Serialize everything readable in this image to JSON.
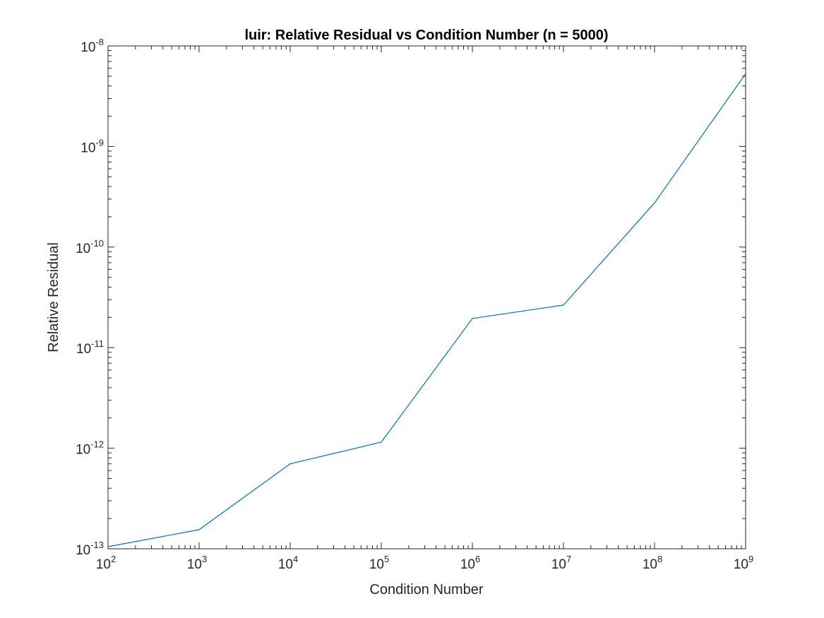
{
  "chart_data": {
    "type": "line",
    "title": "luir: Relative Residual vs Condition Number (n = 5000)",
    "xlabel": "Condition Number",
    "ylabel": "Relative Residual",
    "xscale": "log",
    "yscale": "log",
    "xlim": [
      100,
      1000000000
    ],
    "ylim": [
      1e-13,
      1e-08
    ],
    "grid": false,
    "legend": "none",
    "x_ticks": [
      {
        "base": "10",
        "exp": "2"
      },
      {
        "base": "10",
        "exp": "3"
      },
      {
        "base": "10",
        "exp": "4"
      },
      {
        "base": "10",
        "exp": "5"
      },
      {
        "base": "10",
        "exp": "6"
      },
      {
        "base": "10",
        "exp": "7"
      },
      {
        "base": "10",
        "exp": "8"
      },
      {
        "base": "10",
        "exp": "9"
      }
    ],
    "y_ticks": [
      {
        "base": "10",
        "exp": "-13"
      },
      {
        "base": "10",
        "exp": "-12"
      },
      {
        "base": "10",
        "exp": "-11"
      },
      {
        "base": "10",
        "exp": "-10"
      },
      {
        "base": "10",
        "exp": "-9"
      },
      {
        "base": "10",
        "exp": "-8"
      }
    ],
    "series": [
      {
        "color": "#0072BD",
        "x": [
          100,
          1000,
          10000,
          100000,
          1000000,
          10000000,
          100000000,
          1000000000
        ],
        "y": [
          1.05e-13,
          1.55e-13,
          7e-13,
          1.15e-12,
          1.95e-11,
          2.65e-11,
          2.75e-10,
          5.3e-09
        ]
      }
    ]
  }
}
